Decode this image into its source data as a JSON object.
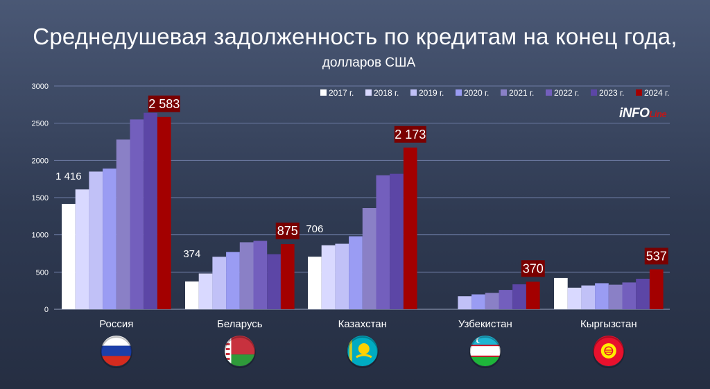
{
  "title": "Среднедушевая задолженность по кредитам на конец года,",
  "subtitle": "долларов США",
  "logo": {
    "main": "iNFO",
    "accent": "Line"
  },
  "colors": {
    "2017 г.": "#ffffff",
    "2018 г.": "#d9d9ff",
    "2019 г.": "#c1c1f7",
    "2020 г.": "#9a9cf3",
    "2021 г.": "#8a80c6",
    "2022 г.": "#735fbd",
    "2023 г.": "#5c46a6",
    "2024 г.": "#a30000",
    "highlight_label_bg": "#7a0000",
    "grid": "#6f7da6",
    "axis": "#9aa4c0"
  },
  "chart_data": {
    "type": "bar",
    "categories": [
      "Россия",
      "Беларусь",
      "Казахстан",
      "Узбекистан",
      "Кыргызстан"
    ],
    "series": [
      {
        "name": "2017 г.",
        "values": [
          1416,
          374,
          706,
          null,
          420
        ]
      },
      {
        "name": "2018 г.",
        "values": [
          1610,
          480,
          860,
          null,
          290
        ]
      },
      {
        "name": "2019 г.",
        "values": [
          1850,
          705,
          880,
          175,
          320
        ]
      },
      {
        "name": "2020 г.",
        "values": [
          1890,
          770,
          980,
          200,
          350
        ]
      },
      {
        "name": "2021 г.",
        "values": [
          2280,
          900,
          1360,
          220,
          330
        ]
      },
      {
        "name": "2022 г.",
        "values": [
          2550,
          920,
          1800,
          260,
          360
        ]
      },
      {
        "name": "2023 г.",
        "values": [
          2640,
          740,
          1820,
          335,
          410
        ]
      },
      {
        "name": "2024 г.",
        "values": [
          2583,
          875,
          2173,
          370,
          537
        ]
      }
    ],
    "data_labels": {
      "first": [
        "1 416",
        "374",
        "706",
        "",
        ""
      ],
      "last": [
        "2 583",
        "875",
        "2 173",
        "370",
        "537"
      ]
    },
    "yticks": [
      "0",
      "500",
      "1000",
      "1500",
      "2000",
      "2500",
      "3000"
    ],
    "ylim": [
      0,
      3000
    ],
    "grid": true,
    "legend_position": "top-right",
    "flags": [
      "russia-flag",
      "belarus-flag",
      "kazakhstan-flag",
      "uzbekistan-flag",
      "kyrgyzstan-flag"
    ]
  }
}
